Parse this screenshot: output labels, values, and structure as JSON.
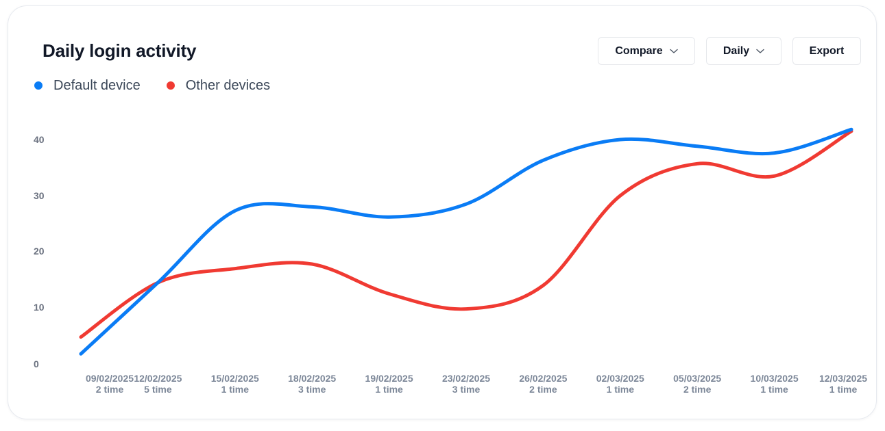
{
  "card": {
    "title": "Daily login activity"
  },
  "controls": {
    "compare_label": "Compare",
    "daily_label": "Daily",
    "export_label": "Export"
  },
  "icons": {
    "compare_dropdown": "chevron-down-icon",
    "daily_dropdown": "chevron-down-icon"
  },
  "colors": {
    "default_device": "#0a7cf5",
    "other_devices": "#f03a32",
    "title": "#111827",
    "axis_text": "#7c8798"
  },
  "chart_data": {
    "type": "line",
    "title": "Daily login activity",
    "xlabel": "",
    "ylabel": "",
    "ylim": [
      0,
      40
    ],
    "y_ticks": [
      "40",
      "30",
      "20",
      "10",
      "0"
    ],
    "grid": false,
    "legend_position": "top-left",
    "categories": [
      {
        "date": "09/02/2025",
        "count": "2 time"
      },
      {
        "date": "12/02/2025",
        "count": "5 time"
      },
      {
        "date": "15/02/2025",
        "count": "1 time"
      },
      {
        "date": "18/02/2025",
        "count": "3 time"
      },
      {
        "date": "19/02/2025",
        "count": "1 time"
      },
      {
        "date": "23/02/2025",
        "count": "3 time"
      },
      {
        "date": "26/02/2025",
        "count": "2 time"
      },
      {
        "date": "02/03/2025",
        "count": "1 time"
      },
      {
        "date": "05/03/2025",
        "count": "2 time"
      },
      {
        "date": "10/03/2025",
        "count": "1 time"
      },
      {
        "date": "12/03/2025",
        "count": "1 time"
      }
    ],
    "series": [
      {
        "name": "Default device",
        "color": "#0a7cf5",
        "values": [
          1.8,
          14.5,
          27.3,
          28.0,
          26.2,
          28.5,
          36.3,
          40.0,
          38.8,
          37.6,
          41.8
        ]
      },
      {
        "name": "Other devices",
        "color": "#f03a32",
        "values": [
          4.8,
          14.5,
          17.0,
          17.8,
          12.5,
          9.8,
          14.0,
          30.0,
          35.7,
          33.5,
          41.5
        ]
      }
    ]
  }
}
